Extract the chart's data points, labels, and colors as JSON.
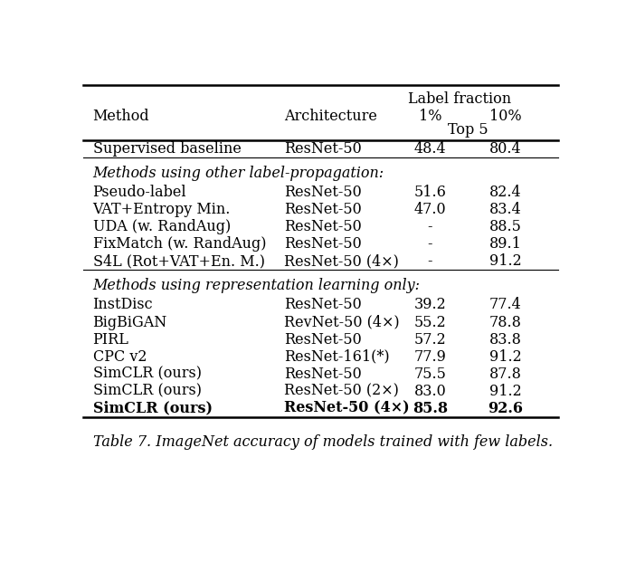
{
  "title_italic": "Table 7.",
  "title_rest": " ImageNet accuracy of models trained with few labels.",
  "bg_color": "#ffffff",
  "text_color": "#000000",
  "font_size": 11.5,
  "caption_font_size": 11.5,
  "col_method": 0.03,
  "col_arch": 0.425,
  "col_p1": 0.725,
  "col_p10": 0.88,
  "col_lf": 0.68,
  "section1_rows": [
    [
      "Pseudo-label",
      "ResNet-50",
      "51.6",
      "82.4",
      false
    ],
    [
      "VAT+Entropy Min.",
      "ResNet-50",
      "47.0",
      "83.4",
      false
    ],
    [
      "UDA (w. RandAug)",
      "ResNet-50",
      "-",
      "88.5",
      false
    ],
    [
      "FixMatch (w. RandAug)",
      "ResNet-50",
      "-",
      "89.1",
      false
    ],
    [
      "S4L (Rot+VAT+En. M.)",
      "ResNet-50 (4×)",
      "-",
      "91.2",
      false
    ]
  ],
  "section2_rows": [
    [
      "InstDisc",
      "ResNet-50",
      "39.2",
      "77.4",
      false
    ],
    [
      "BigBiGAN",
      "RevNet-50 (4×)",
      "55.2",
      "78.8",
      false
    ],
    [
      "PIRL",
      "ResNet-50",
      "57.2",
      "83.8",
      false
    ],
    [
      "CPC v2",
      "ResNet-161(*)",
      "77.9",
      "91.2",
      false
    ],
    [
      "SimCLR (ours)",
      "ResNet-50",
      "75.5",
      "87.8",
      false
    ],
    [
      "SimCLR (ours)",
      "ResNet-50 (2×)",
      "83.0",
      "91.2",
      false
    ],
    [
      "SimCLR (ours)",
      "ResNet-50 (4×)",
      "85.8",
      "92.6",
      true
    ]
  ]
}
